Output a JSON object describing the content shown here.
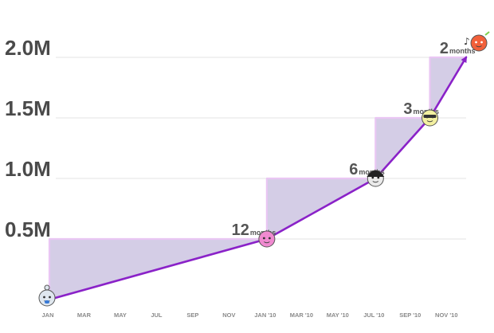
{
  "chart_data": {
    "type": "line",
    "title": "",
    "xlabel": "",
    "ylabel": "",
    "x_ticks": [
      "JAN",
      "MAR",
      "MAY",
      "JUL",
      "SEP",
      "NOV",
      "JAN '10",
      "MAR '10",
      "MAY '10",
      "JUL '10",
      "SEP '10",
      "NOV '10"
    ],
    "y_ticks": [
      "0.5M",
      "1.0M",
      "1.5M",
      "2.0M"
    ],
    "ylim": [
      0,
      2250000
    ],
    "grid": true,
    "legend": "none",
    "series": [
      {
        "values": [
          {
            "x": "2009-01",
            "y": 0
          },
          {
            "x": "2010-01",
            "y": 500000
          },
          {
            "x": "2010-07",
            "y": 1000000
          },
          {
            "x": "2010-10",
            "y": 1500000
          },
          {
            "x": "2010-12",
            "y": 2000000
          }
        ]
      }
    ],
    "steps": [
      {
        "number": "12",
        "unit": "months",
        "from": "2009-01",
        "to": "2010-01",
        "y_from": 0,
        "y_to": 500000
      },
      {
        "number": "6",
        "unit": "months",
        "from": "2010-01",
        "to": "2010-07",
        "y_from": 500000,
        "y_to": 1000000
      },
      {
        "number": "3",
        "unit": "months",
        "from": "2010-07",
        "to": "2010-10",
        "y_from": 1000000,
        "y_to": 1500000
      },
      {
        "number": "2",
        "unit": "months",
        "from": "2010-10",
        "to": "2010-12",
        "y_from": 1500000,
        "y_to": 2000000
      }
    ],
    "colors": {
      "line": "#8a22c8",
      "fill": "#d4cde6",
      "fill_edge": "#e9c6f3",
      "grid": "#e3e3e3",
      "tick_text": "#4a4a4a"
    },
    "icons": [
      "baby-mascot-icon",
      "pink-mascot-icon",
      "dark-haired-mascot-icon",
      "sunglasses-mascot-icon",
      "music-mascot-icon"
    ]
  }
}
